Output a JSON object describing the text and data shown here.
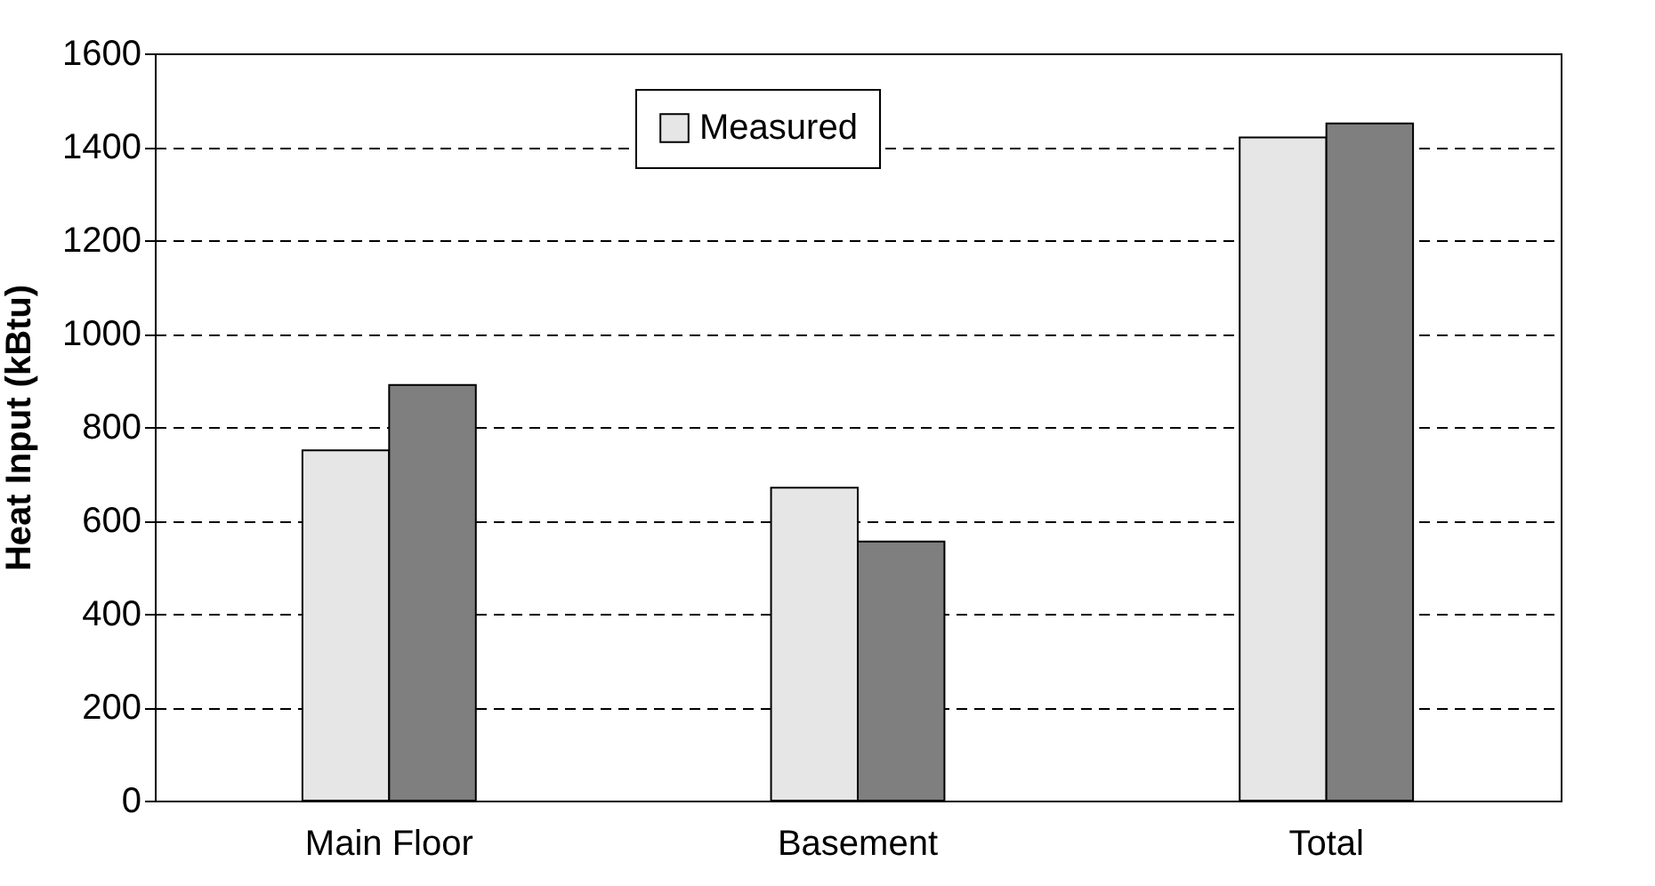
{
  "chart_data": {
    "type": "bar",
    "ylabel": "Heat Input (kBtu)",
    "categories": [
      "Main Floor",
      "Basement",
      "Total"
    ],
    "series": [
      {
        "name": "Measured",
        "color": "#e6e6e6",
        "values": [
          750,
          670,
          1420
        ]
      },
      {
        "color": "#7f7f7f",
        "values": [
          890,
          555,
          1450
        ]
      }
    ],
    "ylim": [
      0,
      1600
    ],
    "yticks": [
      0,
      200,
      400,
      600,
      800,
      1000,
      1200,
      1400,
      1600
    ],
    "grid": "y",
    "legend": "top"
  }
}
